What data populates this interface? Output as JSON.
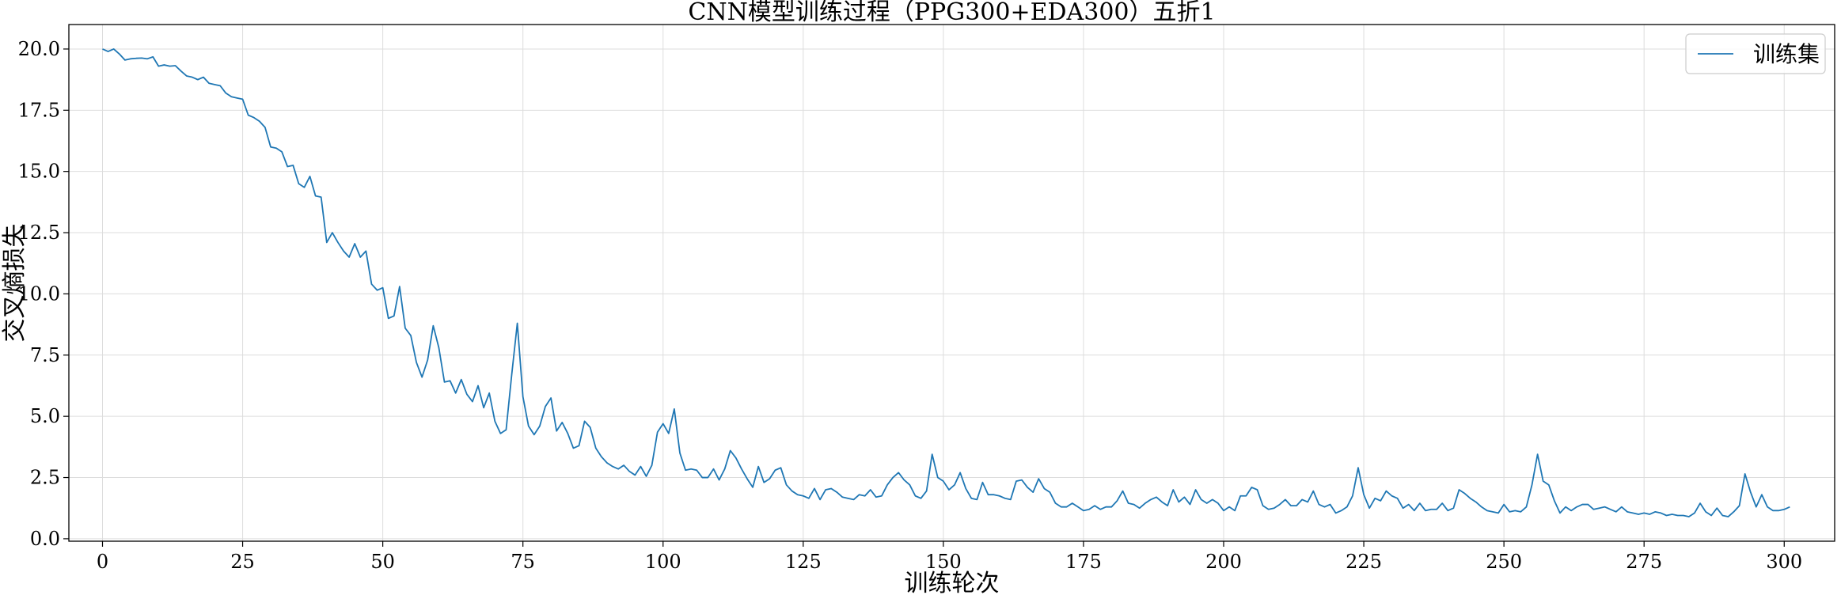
{
  "chart_data": {
    "type": "line",
    "title": "CNN模型训练过程（PPG300+EDA300）五折1",
    "xlabel": "训练轮次",
    "ylabel": "交叉熵损失",
    "xlim": [
      -6,
      309
    ],
    "ylim": [
      -0.1,
      21.0
    ],
    "xticks": [
      0,
      25,
      50,
      75,
      100,
      125,
      150,
      175,
      200,
      225,
      250,
      275,
      300
    ],
    "yticks": [
      0.0,
      2.5,
      5.0,
      7.5,
      10.0,
      12.5,
      15.0,
      17.5,
      20.0
    ],
    "xtick_labels": [
      "0",
      "25",
      "50",
      "75",
      "100",
      "125",
      "150",
      "175",
      "200",
      "225",
      "250",
      "275",
      "300"
    ],
    "ytick_labels": [
      "0.0",
      "2.5",
      "5.0",
      "7.5",
      "10.0",
      "12.5",
      "15.0",
      "17.5",
      "20.0"
    ],
    "grid": true,
    "legend_position": "top-right",
    "series": [
      {
        "name": "训练集",
        "color": "#1f77b4",
        "values": [
          20.0,
          19.9,
          20.0,
          19.8,
          19.55,
          19.6,
          19.62,
          19.63,
          19.6,
          19.68,
          19.3,
          19.35,
          19.3,
          19.32,
          19.1,
          18.9,
          18.85,
          18.75,
          18.85,
          18.6,
          18.55,
          18.5,
          18.2,
          18.05,
          18.0,
          17.95,
          17.3,
          17.2,
          17.05,
          16.8,
          16.0,
          15.95,
          15.8,
          15.2,
          15.25,
          14.5,
          14.35,
          14.8,
          14.0,
          13.95,
          12.1,
          12.5,
          12.1,
          11.75,
          11.5,
          12.05,
          11.5,
          11.75,
          10.4,
          10.15,
          10.25,
          9.0,
          9.1,
          10.3,
          8.6,
          8.3,
          7.2,
          6.6,
          7.3,
          8.7,
          7.8,
          6.4,
          6.45,
          5.95,
          6.5,
          5.9,
          5.6,
          6.25,
          5.35,
          5.95,
          4.8,
          4.3,
          4.45,
          6.7,
          8.8,
          5.8,
          4.6,
          4.25,
          4.6,
          5.4,
          5.75,
          4.4,
          4.75,
          4.3,
          3.7,
          3.8,
          4.8,
          4.55,
          3.7,
          3.35,
          3.1,
          2.95,
          2.85,
          3.0,
          2.75,
          2.6,
          2.95,
          2.55,
          3.0,
          4.35,
          4.7,
          4.3,
          5.3,
          3.5,
          2.8,
          2.85,
          2.8,
          2.5,
          2.5,
          2.85,
          2.4,
          2.85,
          3.6,
          3.3,
          2.85,
          2.45,
          2.1,
          2.95,
          2.3,
          2.45,
          2.8,
          2.9,
          2.2,
          1.95,
          1.8,
          1.75,
          1.65,
          2.05,
          1.6,
          2.0,
          2.05,
          1.9,
          1.7,
          1.65,
          1.6,
          1.8,
          1.75,
          2.0,
          1.7,
          1.75,
          2.2,
          2.5,
          2.7,
          2.4,
          2.2,
          1.75,
          1.65,
          1.95,
          3.45,
          2.5,
          2.35,
          2.0,
          2.2,
          2.7,
          2.05,
          1.65,
          1.6,
          2.3,
          1.8,
          1.8,
          1.75,
          1.65,
          1.6,
          2.35,
          2.4,
          2.1,
          1.9,
          2.45,
          2.05,
          1.9,
          1.45,
          1.3,
          1.3,
          1.45,
          1.3,
          1.15,
          1.2,
          1.35,
          1.2,
          1.3,
          1.3,
          1.55,
          1.95,
          1.45,
          1.4,
          1.25,
          1.45,
          1.6,
          1.7,
          1.5,
          1.35,
          2.0,
          1.5,
          1.7,
          1.4,
          2.0,
          1.6,
          1.45,
          1.6,
          1.45,
          1.15,
          1.3,
          1.15,
          1.75,
          1.75,
          2.1,
          2.0,
          1.35,
          1.2,
          1.25,
          1.4,
          1.6,
          1.35,
          1.35,
          1.6,
          1.5,
          1.95,
          1.4,
          1.3,
          1.4,
          1.05,
          1.15,
          1.3,
          1.75,
          2.9,
          1.8,
          1.25,
          1.65,
          1.55,
          1.95,
          1.75,
          1.65,
          1.25,
          1.4,
          1.15,
          1.45,
          1.15,
          1.2,
          1.2,
          1.45,
          1.15,
          1.25,
          2.0,
          1.85,
          1.65,
          1.5,
          1.3,
          1.15,
          1.1,
          1.05,
          1.4,
          1.1,
          1.15,
          1.1,
          1.3,
          2.2,
          3.45,
          2.35,
          2.2,
          1.55,
          1.05,
          1.3,
          1.15,
          1.3,
          1.4,
          1.4,
          1.2,
          1.25,
          1.3,
          1.2,
          1.1,
          1.3,
          1.1,
          1.05,
          1.0,
          1.05,
          1.0,
          1.1,
          1.05,
          0.95,
          1.0,
          0.95,
          0.95,
          0.9,
          1.05,
          1.45,
          1.1,
          0.95,
          1.25,
          0.95,
          0.9,
          1.1,
          1.35,
          2.65,
          1.9,
          1.3,
          1.8,
          1.3,
          1.15,
          1.15,
          1.2,
          1.3
        ]
      }
    ]
  }
}
